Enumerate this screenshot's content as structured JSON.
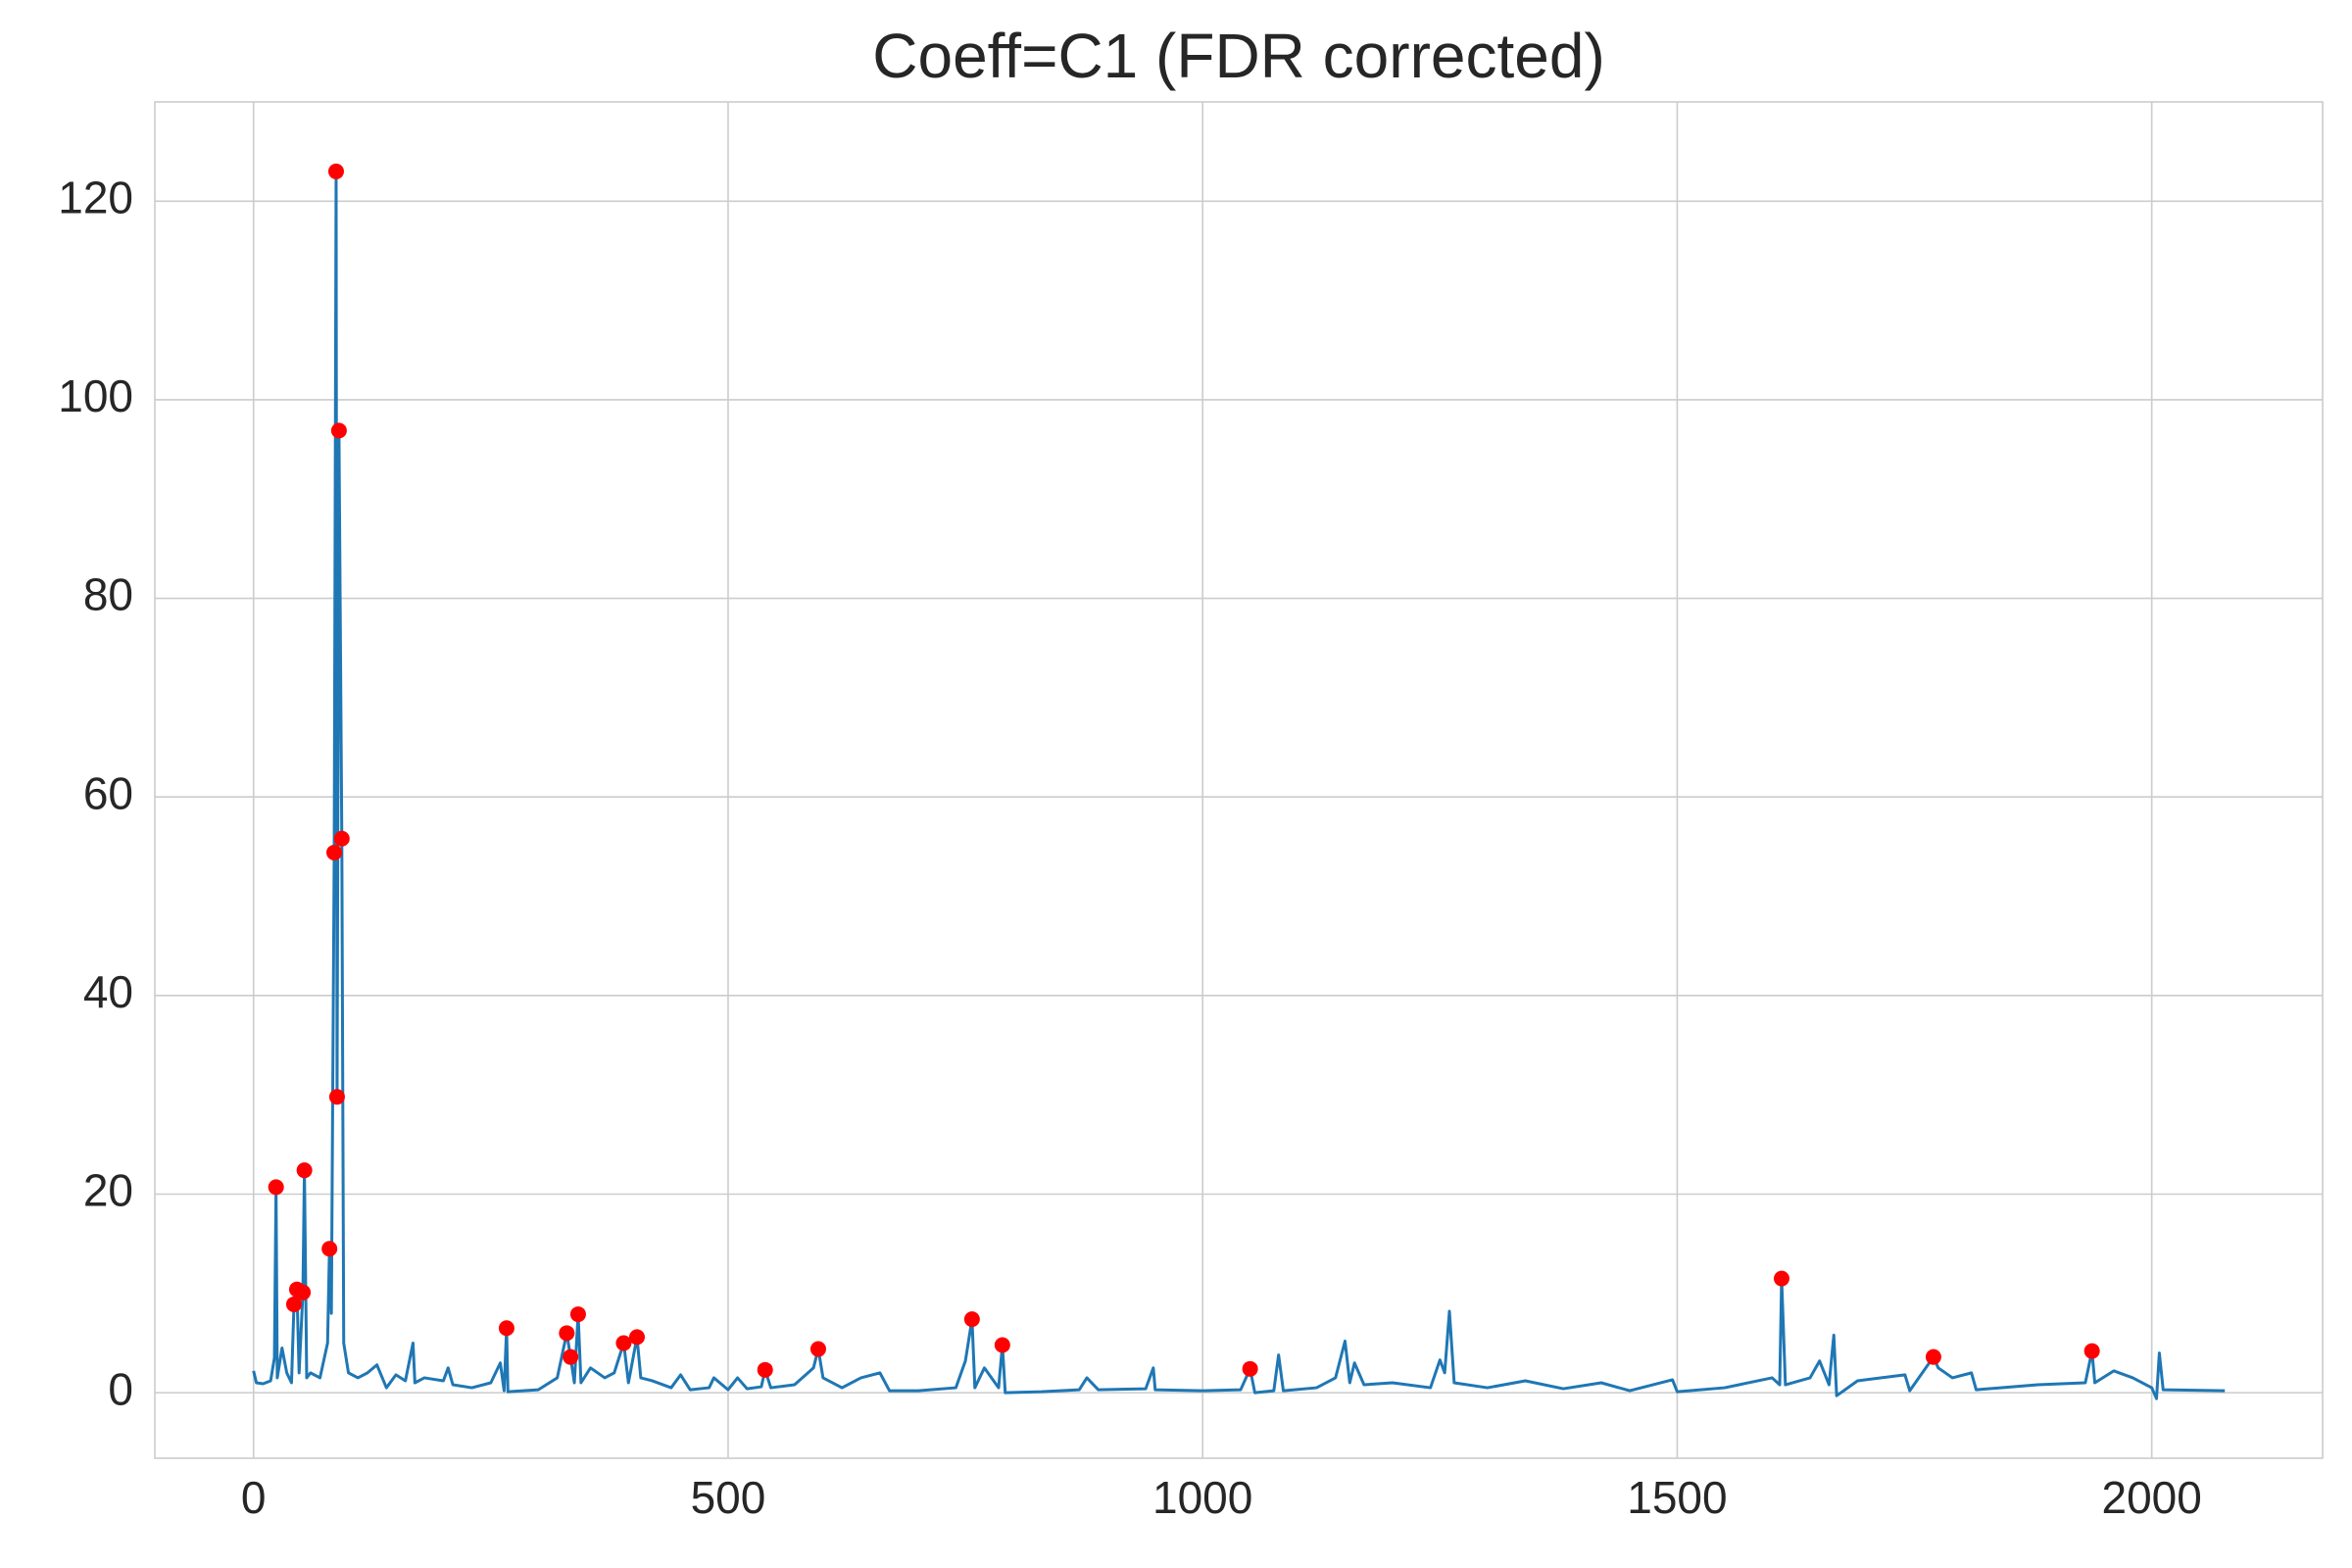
{
  "chart_data": {
    "type": "line",
    "title": "Coeff=C1 (FDR corrected)",
    "xlim": [
      -104,
      2180
    ],
    "ylim": [
      -6.6,
      130
    ],
    "xticks": [
      0,
      500,
      1000,
      1500,
      2000
    ],
    "yticks": [
      0,
      20,
      40,
      60,
      80,
      100,
      120
    ],
    "grid": true,
    "series": [
      {
        "type": "line",
        "color": "#1f77b4",
        "x": [
          0,
          3,
          10,
          18,
          22,
          23.7,
          25,
          30,
          35,
          40,
          42.6,
          45.7,
          48,
          52,
          53.6,
          56,
          60,
          70,
          78,
          80,
          82,
          85,
          87,
          88,
          90,
          93,
          95,
          100,
          110,
          120,
          130,
          140,
          150,
          160,
          168,
          170,
          180,
          200,
          205,
          210,
          230,
          250,
          260,
          264,
          266.6,
          268,
          300,
          320,
          330,
          334,
          338,
          342,
          345,
          355,
          370,
          380,
          390,
          395,
          404,
          408,
          420,
          440,
          450,
          460,
          480,
          485,
          500,
          510,
          520,
          535,
          539,
          545,
          570,
          590,
          595,
          600,
          620,
          640,
          660,
          670,
          700,
          740,
          750,
          757,
          760,
          770,
          785,
          789,
          792,
          830,
          870,
          878,
          890,
          940,
          948,
          950,
          1000,
          1040,
          1050,
          1055,
          1075,
          1080,
          1085,
          1120,
          1140,
          1150,
          1155,
          1160,
          1170,
          1200,
          1240,
          1250,
          1255,
          1260,
          1265,
          1300,
          1340,
          1380,
          1420,
          1450,
          1495,
          1500,
          1550,
          1600,
          1608,
          1610,
          1614,
          1640,
          1650,
          1660,
          1665,
          1668,
          1690,
          1740,
          1745,
          1770,
          1775,
          1790,
          1810,
          1815,
          1880,
          1930,
          1937,
          1940,
          1960,
          1980,
          2000,
          2005,
          2008,
          2012,
          2077
        ],
        "values": [
          2.2,
          1.0,
          0.9,
          1.2,
          3.5,
          20.7,
          1.5,
          4.5,
          2,
          1,
          8.9,
          10.4,
          2,
          10.1,
          22.4,
          1.5,
          2,
          1.5,
          5,
          14.5,
          8,
          54.4,
          123,
          29.8,
          96.9,
          55.8,
          5,
          2,
          1.5,
          2,
          2.8,
          0.5,
          1.8,
          1.2,
          5,
          1,
          1.5,
          1.2,
          2.5,
          0.8,
          0.5,
          1,
          3,
          0.2,
          6.5,
          0.1,
          0.3,
          1.5,
          6.0,
          3.6,
          1,
          7.9,
          1,
          2.5,
          1.5,
          2,
          5.0,
          1,
          5.6,
          1.5,
          1.2,
          0.5,
          1.8,
          0.3,
          0.5,
          1.5,
          0.3,
          1.5,
          0.4,
          0.6,
          2.3,
          0.5,
          0.8,
          2.5,
          4.4,
          1.5,
          0.5,
          1.5,
          2,
          0.2,
          0.2,
          0.5,
          3.2,
          7.4,
          0.5,
          2.5,
          0.5,
          4.8,
          0,
          0.1,
          0.3,
          1.5,
          0.3,
          0.4,
          2.5,
          0.3,
          0.2,
          0.3,
          2.4,
          0,
          0.2,
          3.8,
          0.2,
          0.5,
          1.5,
          5.2,
          1,
          3,
          0.8,
          1,
          0.5,
          3.3,
          2,
          8.2,
          1,
          0.5,
          1.2,
          0.4,
          1.0,
          0.2,
          1.3,
          0.1,
          0.5,
          1.5,
          0.8,
          11.5,
          0.8,
          1.5,
          3.2,
          0.8,
          5.8,
          -0.3,
          1.2,
          1.8,
          0.2,
          3.6,
          2.5,
          1.5,
          2,
          0.3,
          0.8,
          1,
          4.2,
          1,
          2.2,
          1.5,
          0.5,
          -0.6,
          4,
          0.3,
          0.2
        ]
      },
      {
        "type": "scatter",
        "color": "#ff0000",
        "x": [
          23.7,
          42.6,
          45.7,
          52,
          53.6,
          80,
          85,
          87,
          88,
          90,
          93,
          266.6,
          330,
          334,
          342,
          390,
          404,
          539,
          595,
          757,
          789,
          1050,
          1610,
          1770,
          1937
        ],
        "values": [
          20.7,
          8.9,
          10.4,
          10.1,
          22.4,
          14.5,
          54.4,
          123,
          29.8,
          96.9,
          55.8,
          6.5,
          6.0,
          3.6,
          7.9,
          5.0,
          5.6,
          2.3,
          4.4,
          7.4,
          4.8,
          2.4,
          11.5,
          3.6,
          4.2
        ]
      }
    ]
  }
}
